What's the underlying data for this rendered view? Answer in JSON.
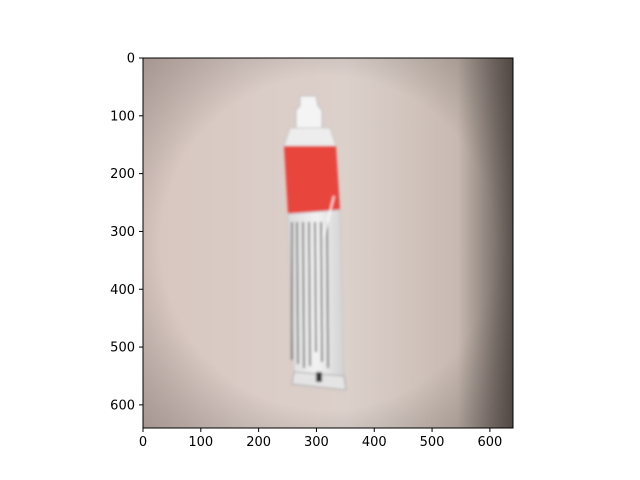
{
  "figure": {
    "description_free_image": true,
    "image_extent": {
      "x": [
        0,
        640
      ],
      "y": [
        0,
        640
      ]
    },
    "x_axis": {
      "ticks": [
        0,
        100,
        200,
        300,
        400,
        500,
        600
      ],
      "labels": [
        "0",
        "100",
        "200",
        "300",
        "400",
        "500",
        "600"
      ]
    },
    "y_axis": {
      "ticks": [
        0,
        100,
        200,
        300,
        400,
        500,
        600
      ],
      "labels": [
        "0",
        "100",
        "200",
        "300",
        "400",
        "500",
        "600"
      ],
      "inverted": true
    },
    "colors": {
      "background_wall": "#d9cdc8",
      "tube_red": "#e8453c",
      "tube_white": "#eeeeee",
      "tube_text": "#555555",
      "axes": "#000000"
    }
  }
}
